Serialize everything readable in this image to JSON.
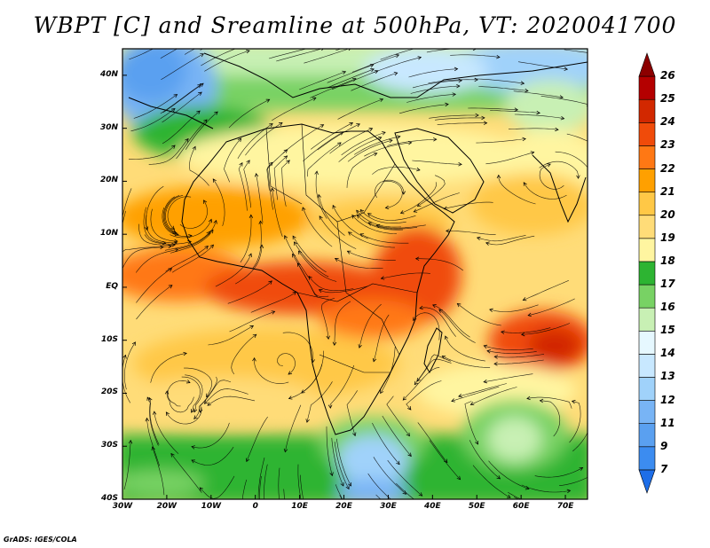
{
  "title": "WBPT [C] and Sreamline at 500hPa, VT: 2020041700",
  "credit": "GrADS: IGES/COLA",
  "axes": {
    "lon_labels": [
      "30W",
      "20W",
      "10W",
      "0",
      "10E",
      "20E",
      "30E",
      "40E",
      "50E",
      "60E",
      "70E"
    ],
    "lat_labels": [
      "40N",
      "30N",
      "20N",
      "10N",
      "EQ",
      "10S",
      "20S",
      "30S",
      "40S"
    ]
  },
  "colorbar": {
    "levels": [
      "7",
      "9",
      "11",
      "12",
      "13",
      "14",
      "15",
      "16",
      "17",
      "18",
      "19",
      "20",
      "21",
      "22",
      "23",
      "24",
      "25",
      "26"
    ],
    "colors": [
      "#1e6ee8",
      "#3c8cf0",
      "#5aa0f0",
      "#78b4f5",
      "#a0d2fa",
      "#c8e8ff",
      "#e6f8ff",
      "#c8f0b4",
      "#78d264",
      "#2db432",
      "#fff5a0",
      "#ffdc78",
      "#ffc846",
      "#ffa000",
      "#ff7814",
      "#f04b0a",
      "#d22800",
      "#b40000",
      "#8c0000"
    ]
  },
  "map": {
    "field": "Wet-bulb potential temperature at 500hPa with streamlines",
    "lon_range": [
      -30,
      75
    ],
    "lat_range": [
      -40,
      45
    ]
  }
}
